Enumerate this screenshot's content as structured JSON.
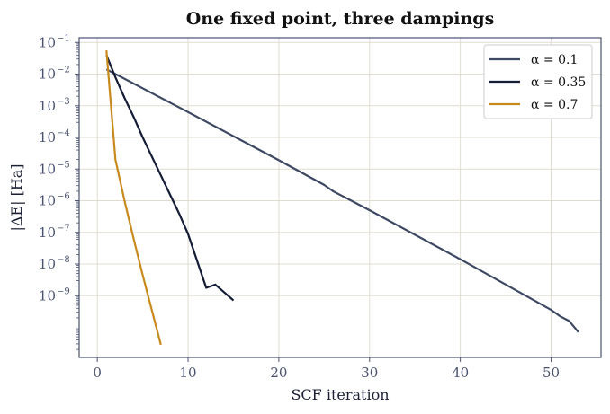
{
  "chart_data": {
    "type": "line",
    "title": "One fixed point, three dampings",
    "xlabel": "SCF iteration",
    "ylabel": "|ΔE| [Ha]",
    "xlim": [
      -2,
      55.5
    ],
    "ylim_log10": [
      -10.95,
      -0.85
    ],
    "yscale": "log",
    "grid": true,
    "legend_position": "top-right",
    "x_ticks": [
      0,
      10,
      20,
      30,
      40,
      50
    ],
    "y_tick_exponents": [
      -1,
      -2,
      -3,
      -4,
      -5,
      -6,
      -7,
      -8,
      -9
    ],
    "y_tick_base": "10",
    "series": [
      {
        "name": "α = 0.1",
        "color": "#3d4863",
        "x": [
          1,
          10,
          20,
          25,
          26,
          30,
          40,
          50,
          51,
          52,
          53
        ],
        "log10_y": [
          -1.85,
          -3.2,
          -4.72,
          -5.5,
          -5.7,
          -6.3,
          -7.85,
          -9.45,
          -9.65,
          -9.8,
          -10.15
        ]
      },
      {
        "name": "α = 0.35",
        "color": "#151c36",
        "x": [
          1,
          2,
          3,
          4,
          5,
          6,
          7,
          8,
          9,
          10,
          11,
          12,
          13,
          14,
          15
        ],
        "log10_y": [
          -1.4,
          -2.1,
          -2.75,
          -3.35,
          -4.0,
          -4.6,
          -5.2,
          -5.8,
          -6.4,
          -7.05,
          -7.9,
          -8.75,
          -8.65,
          -8.9,
          -9.15
        ]
      },
      {
        "name": "α = 0.7",
        "color": "#c88a1c",
        "x": [
          1,
          2,
          3,
          4,
          5,
          6,
          7
        ],
        "log10_y": [
          -1.25,
          -4.7,
          -6.0,
          -7.2,
          -8.35,
          -9.45,
          -10.55
        ]
      }
    ]
  }
}
